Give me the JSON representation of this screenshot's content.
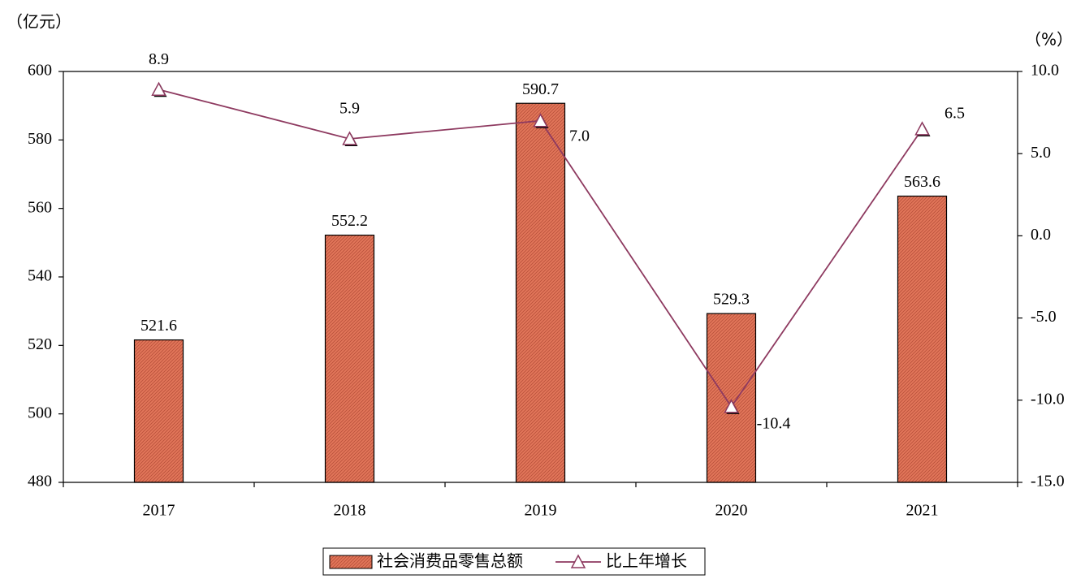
{
  "chart_data": {
    "type": "bar_line",
    "y_label": "（亿元）",
    "y2_label": "（%）",
    "categories": [
      "2017",
      "2018",
      "2019",
      "2020",
      "2021"
    ],
    "series": [
      {
        "name": "社会消费品零售总额",
        "type": "bar",
        "color": "#e2765a",
        "values": [
          521.6,
          552.2,
          590.7,
          529.3,
          563.6
        ]
      },
      {
        "name": "比上年增长",
        "type": "line",
        "axis": "y2",
        "color": "#8e3a60",
        "values": [
          8.9,
          5.9,
          7.0,
          -10.4,
          6.5
        ],
        "value_labels": [
          "8.9",
          "5.9",
          "7.0",
          "-10.4",
          "6.5"
        ]
      }
    ],
    "ylim": [
      480,
      600
    ],
    "yticks": [
      480,
      500,
      520,
      540,
      560,
      580,
      600
    ],
    "y2lim": [
      -15,
      10
    ],
    "y2ticks": [
      {
        "value": -15,
        "label": "-15.0"
      },
      {
        "value": -10,
        "label": "-10.0"
      },
      {
        "value": -5,
        "label": "-5.0"
      },
      {
        "value": 0,
        "label": "0.0"
      },
      {
        "value": 5,
        "label": "5.0"
      },
      {
        "value": 10,
        "label": "10.0"
      }
    ],
    "legend": "bottom"
  }
}
